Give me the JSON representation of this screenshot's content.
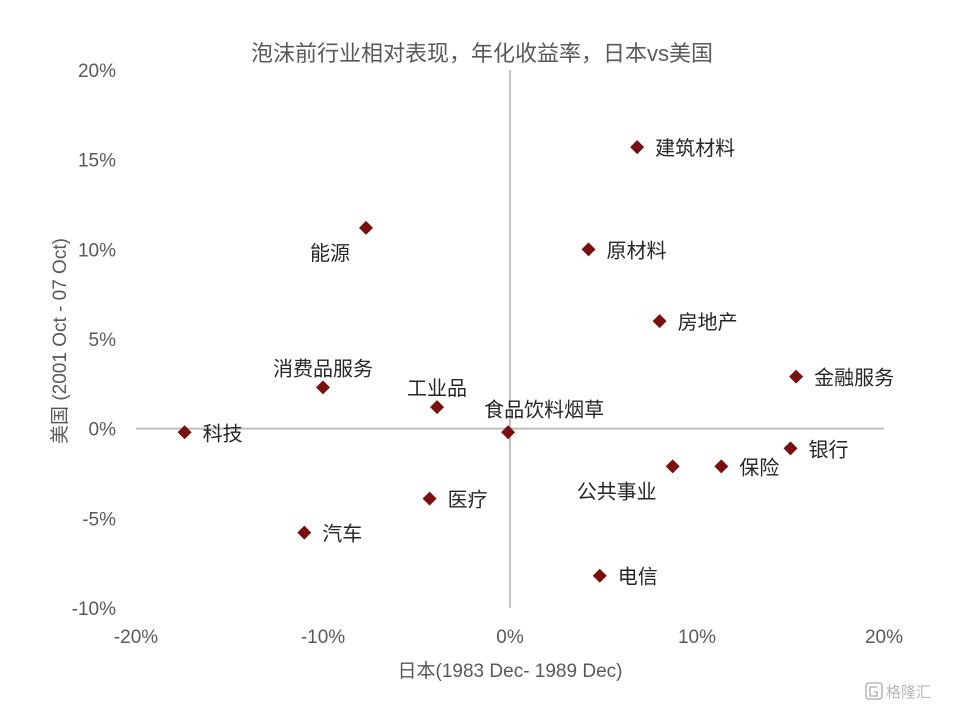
{
  "chart_data": {
    "type": "scatter",
    "title": "泡沫前行业相对表现，年化收益率，日本vs美国",
    "xlabel": "日本(1983 Dec- 1989 Dec)",
    "ylabel": "美国 (2001 Oct - 07 Oct)",
    "xlim": [
      -0.2,
      0.2
    ],
    "ylim": [
      -0.1,
      0.2
    ],
    "x_ticks": [
      -0.2,
      -0.1,
      0.0,
      0.1,
      0.2
    ],
    "x_tick_labels": [
      "-20%",
      "-10%",
      "0%",
      "10%",
      "20%"
    ],
    "y_ticks": [
      -0.1,
      -0.05,
      0.0,
      0.05,
      0.1,
      0.15,
      0.2
    ],
    "y_tick_labels": [
      "-10%",
      "-5%",
      "0%",
      "5%",
      "10%",
      "15%",
      "20%"
    ],
    "grid": false,
    "marker": "diamond",
    "marker_color": "#7a0f0f",
    "axis_line_color": "#bfbfbf",
    "points": [
      {
        "label": "建筑材料",
        "x": 0.068,
        "y": 0.157,
        "label_pos": "right"
      },
      {
        "label": "原材料",
        "x": 0.042,
        "y": 0.1,
        "label_pos": "right"
      },
      {
        "label": "能源",
        "x": -0.077,
        "y": 0.112,
        "label_pos": "below-left"
      },
      {
        "label": "房地产",
        "x": 0.08,
        "y": 0.06,
        "label_pos": "right"
      },
      {
        "label": "金融服务",
        "x": 0.153,
        "y": 0.029,
        "label_pos": "right"
      },
      {
        "label": "消费品服务",
        "x": -0.1,
        "y": 0.023,
        "label_pos": "above"
      },
      {
        "label": "工业品",
        "x": -0.039,
        "y": 0.012,
        "label_pos": "above"
      },
      {
        "label": "食品饮料烟草",
        "x": -0.001,
        "y": -0.002,
        "label_pos": "above-right"
      },
      {
        "label": "科技",
        "x": -0.174,
        "y": -0.002,
        "label_pos": "right"
      },
      {
        "label": "银行",
        "x": 0.15,
        "y": -0.011,
        "label_pos": "right"
      },
      {
        "label": "保险",
        "x": 0.113,
        "y": -0.021,
        "label_pos": "right"
      },
      {
        "label": "公共事业",
        "x": 0.087,
        "y": -0.021,
        "label_pos": "below-left"
      },
      {
        "label": "医疗",
        "x": -0.043,
        "y": -0.039,
        "label_pos": "right"
      },
      {
        "label": "汽车",
        "x": -0.11,
        "y": -0.058,
        "label_pos": "right"
      },
      {
        "label": "电信",
        "x": 0.048,
        "y": -0.082,
        "label_pos": "right"
      }
    ]
  },
  "watermark": {
    "text": "格隆汇",
    "icon": "gelonghui-logo-icon"
  }
}
